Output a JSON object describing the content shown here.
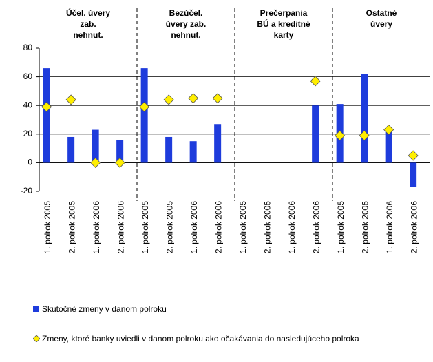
{
  "chart_data": {
    "type": "bar",
    "categories": [
      "1. polrok 2005",
      "2. polrok 2005",
      "1. polrok 2006",
      "2. polrok 2006",
      "1. polrok 2005",
      "2. polrok 2005",
      "1. polrok 2006",
      "2. polrok 2006",
      "1. polrok 2005",
      "2. polrok 2005",
      "1. polrok 2006",
      "2. polrok 2006",
      "1. polrok 2005",
      "2. polrok 2005",
      "1. polrok 2006",
      "2. polrok 2006"
    ],
    "group_labels": [
      [
        "Účel. úvery",
        "zab.",
        "nehnut."
      ],
      [
        "Bezúčel.",
        "úvery zab.",
        "nehnut."
      ],
      [
        "Prečerpania",
        "BÚ a kreditné",
        "karty"
      ],
      [
        "Ostatné",
        "úvery"
      ]
    ],
    "series": [
      {
        "name": "Skutočné zmeny v danom polroku",
        "color": "#1e3cdc",
        "values": [
          66,
          18,
          23,
          16,
          66,
          18,
          15,
          27,
          null,
          null,
          null,
          40,
          41,
          62,
          22,
          -17
        ]
      },
      {
        "name": "Zmeny, ktoré banky uviedli v danom polroku ako očakávania do nasledujúceho polroka",
        "color": "#ffee00",
        "marker": "diamond",
        "values": [
          39,
          44,
          0,
          0,
          39,
          44,
          45,
          45,
          null,
          null,
          null,
          57,
          19,
          19,
          23,
          5
        ]
      }
    ],
    "ylim": [
      -20,
      80
    ],
    "yticks": [
      -20,
      0,
      20,
      40,
      60,
      80
    ],
    "grid": true
  }
}
